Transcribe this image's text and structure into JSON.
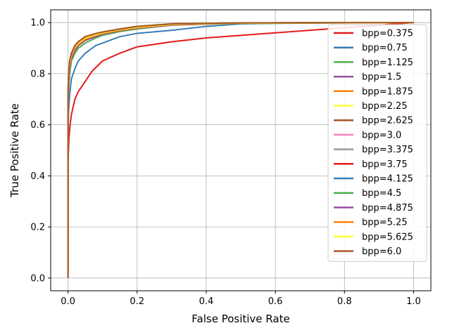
{
  "chart_data": {
    "type": "line",
    "xlabel": "False Positive Rate",
    "ylabel": "True Positive Rate",
    "xlim": [
      -0.05,
      1.05
    ],
    "ylim": [
      -0.05,
      1.05
    ],
    "xticks": [
      "0.0",
      "0.2",
      "0.4",
      "0.6",
      "0.8",
      "1.0"
    ],
    "yticks": [
      "0.0",
      "0.2",
      "0.4",
      "0.6",
      "0.8",
      "1.0"
    ],
    "grid": true,
    "legend_position": "right",
    "series": [
      {
        "name": "bpp=0.375",
        "color": "#e41a1c",
        "x": [
          0,
          0,
          0.003,
          0.006,
          0.01,
          0.02,
          0.03,
          0.05,
          0.07,
          0.1,
          0.15,
          0.2,
          0.3,
          0.4,
          0.5,
          0.6,
          0.7,
          0.8,
          0.9,
          1.0
        ],
        "y": [
          0,
          0.45,
          0.55,
          0.6,
          0.64,
          0.7,
          0.73,
          0.77,
          0.81,
          0.85,
          0.88,
          0.905,
          0.925,
          0.94,
          0.95,
          0.96,
          0.97,
          0.98,
          0.99,
          1.0
        ]
      },
      {
        "name": "bpp=0.75",
        "color": "#377eb8",
        "x": [
          0,
          0,
          0.002,
          0.005,
          0.01,
          0.02,
          0.03,
          0.05,
          0.08,
          0.1,
          0.15,
          0.2,
          0.3,
          0.4,
          0.5,
          0.6,
          0.8,
          1.0
        ],
        "y": [
          0,
          0.58,
          0.66,
          0.72,
          0.78,
          0.82,
          0.85,
          0.88,
          0.91,
          0.92,
          0.945,
          0.958,
          0.97,
          0.985,
          0.995,
          0.997,
          0.999,
          1.0
        ]
      },
      {
        "name": "bpp=1.125",
        "color": "#4daf4a",
        "x": [
          0,
          0,
          0.002,
          0.005,
          0.01,
          0.02,
          0.03,
          0.05,
          0.08,
          0.1,
          0.15,
          0.2,
          0.3,
          0.5,
          1.0
        ],
        "y": [
          0,
          0.66,
          0.74,
          0.8,
          0.85,
          0.88,
          0.9,
          0.92,
          0.94,
          0.95,
          0.965,
          0.975,
          0.99,
          0.997,
          1.0
        ]
      },
      {
        "name": "bpp=1.5",
        "color": "#984ea3",
        "x": [
          0,
          0,
          0.002,
          0.005,
          0.01,
          0.02,
          0.03,
          0.05,
          0.08,
          0.1,
          0.15,
          0.2,
          0.3,
          0.5,
          1.0
        ],
        "y": [
          0,
          0.68,
          0.76,
          0.82,
          0.86,
          0.89,
          0.91,
          0.93,
          0.945,
          0.955,
          0.968,
          0.978,
          0.99,
          0.998,
          1.0
        ]
      },
      {
        "name": "bpp=1.875",
        "color": "#ff7f00",
        "x": [
          0,
          0,
          0.002,
          0.005,
          0.01,
          0.02,
          0.03,
          0.05,
          0.08,
          0.1,
          0.15,
          0.2,
          0.3,
          0.5,
          1.0
        ],
        "y": [
          0,
          0.7,
          0.78,
          0.83,
          0.87,
          0.9,
          0.915,
          0.935,
          0.95,
          0.958,
          0.97,
          0.98,
          0.992,
          0.998,
          1.0
        ]
      },
      {
        "name": "bpp=2.25",
        "color": "#ffff33",
        "x": [
          0,
          0,
          0.002,
          0.005,
          0.01,
          0.02,
          0.03,
          0.05,
          0.08,
          0.1,
          0.15,
          0.2,
          0.3,
          0.5,
          1.0
        ],
        "y": [
          0,
          0.71,
          0.79,
          0.84,
          0.875,
          0.905,
          0.92,
          0.94,
          0.953,
          0.96,
          0.973,
          0.982,
          0.993,
          0.998,
          1.0
        ]
      },
      {
        "name": "bpp=2.625",
        "color": "#a65628",
        "x": [
          0,
          0,
          0.002,
          0.005,
          0.01,
          0.02,
          0.03,
          0.05,
          0.08,
          0.1,
          0.15,
          0.2,
          0.3,
          0.5,
          1.0
        ],
        "y": [
          0,
          0.72,
          0.8,
          0.85,
          0.88,
          0.91,
          0.925,
          0.945,
          0.957,
          0.963,
          0.975,
          0.985,
          0.995,
          0.999,
          1.0
        ]
      },
      {
        "name": "bpp=3.0",
        "color": "#f781bf",
        "x": [
          0,
          0,
          0.002,
          0.005,
          0.01,
          0.02,
          0.03,
          0.05,
          0.08,
          0.1,
          0.15,
          0.2,
          0.3,
          0.5,
          1.0
        ],
        "y": [
          0,
          0.72,
          0.8,
          0.85,
          0.88,
          0.91,
          0.925,
          0.945,
          0.957,
          0.963,
          0.975,
          0.985,
          0.995,
          0.999,
          1.0
        ]
      },
      {
        "name": "bpp=3.375",
        "color": "#999999",
        "x": [
          0,
          0,
          0.002,
          0.005,
          0.01,
          0.02,
          0.03,
          0.05,
          0.08,
          0.1,
          0.15,
          0.2,
          0.3,
          0.5,
          1.0
        ],
        "y": [
          0,
          0.72,
          0.8,
          0.85,
          0.88,
          0.91,
          0.925,
          0.945,
          0.957,
          0.963,
          0.975,
          0.985,
          0.995,
          0.999,
          1.0
        ]
      },
      {
        "name": "bpp=3.75",
        "color": "#e41a1c",
        "x": [
          0,
          0,
          0.002,
          0.005,
          0.01,
          0.02,
          0.03,
          0.05,
          0.08,
          0.1,
          0.15,
          0.2,
          0.3,
          0.5,
          1.0
        ],
        "y": [
          0,
          0.72,
          0.8,
          0.85,
          0.88,
          0.91,
          0.925,
          0.945,
          0.957,
          0.963,
          0.975,
          0.985,
          0.995,
          0.999,
          1.0
        ]
      },
      {
        "name": "bpp=4.125",
        "color": "#377eb8",
        "x": [
          0,
          0,
          0.002,
          0.005,
          0.01,
          0.02,
          0.03,
          0.05,
          0.08,
          0.1,
          0.15,
          0.2,
          0.3,
          0.5,
          1.0
        ],
        "y": [
          0,
          0.72,
          0.8,
          0.85,
          0.88,
          0.91,
          0.925,
          0.945,
          0.957,
          0.963,
          0.975,
          0.985,
          0.995,
          0.999,
          1.0
        ]
      },
      {
        "name": "bpp=4.5",
        "color": "#4daf4a",
        "x": [
          0,
          0,
          0.002,
          0.005,
          0.01,
          0.02,
          0.03,
          0.05,
          0.08,
          0.1,
          0.15,
          0.2,
          0.3,
          0.5,
          1.0
        ],
        "y": [
          0,
          0.72,
          0.8,
          0.85,
          0.88,
          0.91,
          0.925,
          0.945,
          0.957,
          0.963,
          0.975,
          0.985,
          0.995,
          0.999,
          1.0
        ]
      },
      {
        "name": "bpp=4.875",
        "color": "#984ea3",
        "x": [
          0,
          0,
          0.002,
          0.005,
          0.01,
          0.02,
          0.03,
          0.05,
          0.08,
          0.1,
          0.15,
          0.2,
          0.3,
          0.5,
          1.0
        ],
        "y": [
          0,
          0.72,
          0.8,
          0.85,
          0.88,
          0.91,
          0.925,
          0.945,
          0.957,
          0.963,
          0.975,
          0.985,
          0.995,
          0.999,
          1.0
        ]
      },
      {
        "name": "bpp=5.25",
        "color": "#ff7f00",
        "x": [
          0,
          0,
          0.002,
          0.005,
          0.01,
          0.02,
          0.03,
          0.05,
          0.08,
          0.1,
          0.15,
          0.2,
          0.3,
          0.5,
          1.0
        ],
        "y": [
          0,
          0.72,
          0.8,
          0.85,
          0.88,
          0.91,
          0.925,
          0.945,
          0.957,
          0.963,
          0.975,
          0.985,
          0.995,
          0.999,
          1.0
        ]
      },
      {
        "name": "bpp=5.625",
        "color": "#ffff33",
        "x": [
          0,
          0,
          0.002,
          0.005,
          0.01,
          0.02,
          0.03,
          0.05,
          0.08,
          0.1,
          0.15,
          0.2,
          0.3,
          0.5,
          1.0
        ],
        "y": [
          0,
          0.72,
          0.8,
          0.85,
          0.88,
          0.91,
          0.925,
          0.945,
          0.957,
          0.963,
          0.975,
          0.985,
          0.995,
          0.999,
          1.0
        ]
      },
      {
        "name": "bpp=6.0",
        "color": "#a65628",
        "x": [
          0,
          0,
          0.002,
          0.005,
          0.01,
          0.02,
          0.03,
          0.05,
          0.08,
          0.1,
          0.15,
          0.2,
          0.3,
          0.5,
          1.0
        ],
        "y": [
          0,
          0.72,
          0.8,
          0.85,
          0.88,
          0.91,
          0.925,
          0.945,
          0.957,
          0.963,
          0.975,
          0.985,
          0.995,
          0.999,
          1.0
        ]
      }
    ]
  }
}
